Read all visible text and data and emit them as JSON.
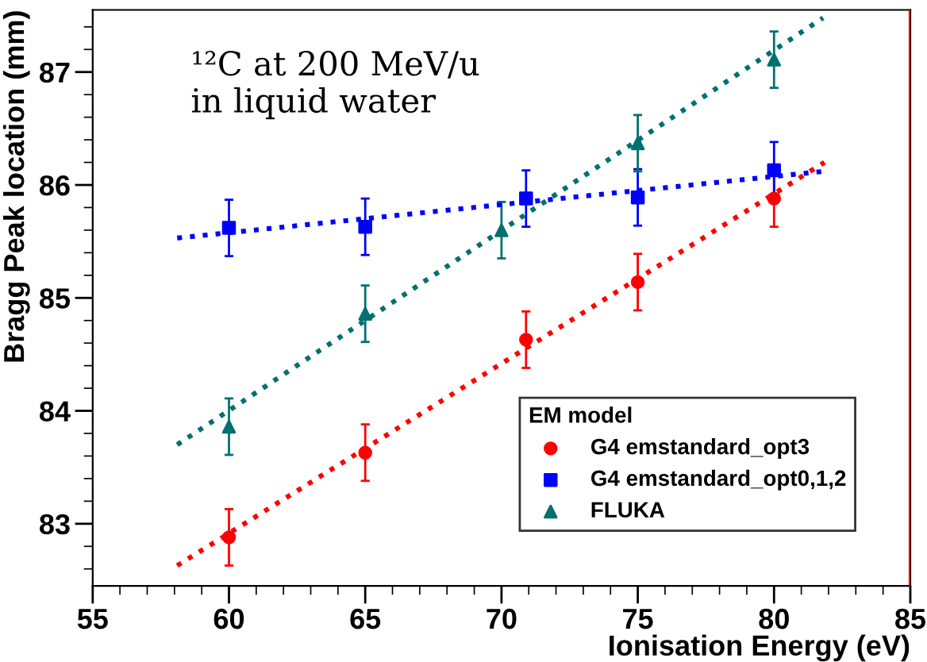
{
  "chart_data": {
    "type": "scatter",
    "xlabel": "Ionisation Energy (eV)",
    "ylabel": "Bragg Peak location (mm)",
    "legend_title": "EM model",
    "annotations": [
      "¹²C at 200 MeV/u\nin liquid water"
    ],
    "xlim": [
      55,
      85
    ],
    "xticks": [
      55,
      60,
      65,
      70,
      75,
      80,
      85
    ],
    "ylim": [
      82.45,
      87.55
    ],
    "yticks": [
      83,
      84,
      85,
      86,
      87
    ],
    "grid": false,
    "legend": "bottom right",
    "ref_lines": [
      {
        "axis": "x",
        "value": 85,
        "color": "#ff0000"
      }
    ],
    "series": [
      {
        "name": "G4 emstandard_opt3",
        "color": "#ff0000",
        "marker": "circle",
        "x": [
          60,
          65,
          70.9,
          75,
          80
        ],
        "values": [
          82.88,
          83.63,
          84.63,
          85.14,
          85.88
        ],
        "errors": [
          0.25,
          0.25,
          0.25,
          0.25,
          0.25
        ]
      },
      {
        "name": "G4 emstandard_opt0,1,2",
        "color": "#0000ff",
        "marker": "square",
        "x": [
          60,
          65,
          70.9,
          75,
          80
        ],
        "values": [
          85.62,
          85.63,
          85.88,
          85.89,
          86.13
        ],
        "errors": [
          0.25,
          0.25,
          0.25,
          0.25,
          0.25
        ]
      },
      {
        "name": "FLUKA",
        "color": "#007070",
        "marker": "triangle",
        "x": [
          60,
          65,
          70,
          75,
          80
        ],
        "values": [
          83.86,
          84.86,
          85.6,
          86.37,
          87.11
        ],
        "errors": [
          0.25,
          0.25,
          0.25,
          0.25,
          0.25
        ]
      },
      {
        "type": "line",
        "color": "#ff0000",
        "line_style": "dotted",
        "x": [
          58.1,
          81.85
        ],
        "values": [
          82.63,
          86.2
        ]
      },
      {
        "type": "line",
        "color": "#0000ff",
        "line_style": "dotted",
        "x": [
          58.1,
          81.8
        ],
        "values": [
          85.53,
          86.12
        ]
      },
      {
        "type": "line",
        "color": "#007070",
        "line_style": "dotted",
        "x": [
          58.1,
          81.8
        ],
        "values": [
          83.7,
          87.48
        ]
      }
    ]
  }
}
